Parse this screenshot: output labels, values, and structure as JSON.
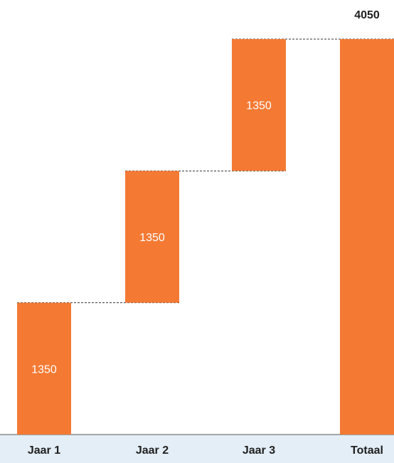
{
  "chart_data": {
    "type": "bar",
    "subtype": "waterfall",
    "categories": [
      "Jaar 1",
      "Jaar 2",
      "Jaar 3",
      "Totaal"
    ],
    "values": [
      1350,
      1350,
      1350,
      4050
    ],
    "data_labels": [
      "1350",
      "1350",
      "1350",
      "4050"
    ],
    "ylim": [
      0,
      4050
    ],
    "grid": false,
    "legend": "none"
  },
  "colors": {
    "bar": "#F47A34",
    "axis_band": "#E4EEF6",
    "connector": "#333333"
  }
}
